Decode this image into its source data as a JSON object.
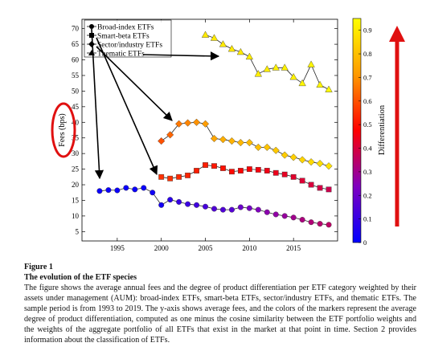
{
  "chart_data": {
    "type": "line",
    "ylabel": "Fees (bps)",
    "xlim": [
      1991,
      2020
    ],
    "ylim": [
      2,
      73
    ],
    "x_ticks": [
      "1995",
      "2000",
      "2005",
      "2010",
      "2015"
    ],
    "y_ticks": [
      "5",
      "10",
      "15",
      "20",
      "25",
      "30",
      "35",
      "40",
      "45",
      "50",
      "55",
      "60",
      "65",
      "70"
    ],
    "legend_position": "top-left",
    "colorbar": {
      "label": "Differentiation",
      "range": [
        0,
        0.95
      ],
      "ticks": [
        "0",
        "0.1",
        "0.2",
        "0.3",
        "0.4",
        "0.5",
        "0.6",
        "0.7",
        "0.8",
        "0.9"
      ]
    },
    "series": [
      {
        "name": "Broad-index ETFs",
        "marker": "circle",
        "points": [
          {
            "x": 1993,
            "y": 18.0,
            "d": 0.02
          },
          {
            "x": 1994,
            "y": 18.3,
            "d": 0.02
          },
          {
            "x": 1995,
            "y": 18.2,
            "d": 0.02
          },
          {
            "x": 1996,
            "y": 19.0,
            "d": 0.02
          },
          {
            "x": 1997,
            "y": 18.5,
            "d": 0.02
          },
          {
            "x": 1998,
            "y": 19.0,
            "d": 0.02
          },
          {
            "x": 1999,
            "y": 17.5,
            "d": 0.03
          },
          {
            "x": 2000,
            "y": 13.5,
            "d": 0.04
          },
          {
            "x": 2001,
            "y": 15.2,
            "d": 0.08
          },
          {
            "x": 2002,
            "y": 14.5,
            "d": 0.1
          },
          {
            "x": 2003,
            "y": 13.8,
            "d": 0.11
          },
          {
            "x": 2004,
            "y": 13.5,
            "d": 0.12
          },
          {
            "x": 2005,
            "y": 13.0,
            "d": 0.13
          },
          {
            "x": 2006,
            "y": 12.3,
            "d": 0.15
          },
          {
            "x": 2007,
            "y": 12.0,
            "d": 0.15
          },
          {
            "x": 2008,
            "y": 12.0,
            "d": 0.16
          },
          {
            "x": 2009,
            "y": 12.8,
            "d": 0.2
          },
          {
            "x": 2010,
            "y": 12.5,
            "d": 0.22
          },
          {
            "x": 2011,
            "y": 12.0,
            "d": 0.24
          },
          {
            "x": 2012,
            "y": 11.2,
            "d": 0.26
          },
          {
            "x": 2013,
            "y": 10.5,
            "d": 0.27
          },
          {
            "x": 2014,
            "y": 10.0,
            "d": 0.28
          },
          {
            "x": 2015,
            "y": 9.5,
            "d": 0.3
          },
          {
            "x": 2016,
            "y": 8.8,
            "d": 0.32
          },
          {
            "x": 2017,
            "y": 8.0,
            "d": 0.33
          },
          {
            "x": 2018,
            "y": 7.5,
            "d": 0.34
          },
          {
            "x": 2019,
            "y": 7.2,
            "d": 0.35
          }
        ]
      },
      {
        "name": "Smart-beta ETFs",
        "marker": "square",
        "points": [
          {
            "x": 2000,
            "y": 22.5,
            "d": 0.55
          },
          {
            "x": 2001,
            "y": 22.0,
            "d": 0.55
          },
          {
            "x": 2002,
            "y": 22.5,
            "d": 0.54
          },
          {
            "x": 2003,
            "y": 23.0,
            "d": 0.53
          },
          {
            "x": 2004,
            "y": 24.5,
            "d": 0.52
          },
          {
            "x": 2005,
            "y": 26.3,
            "d": 0.52
          },
          {
            "x": 2006,
            "y": 26.0,
            "d": 0.51
          },
          {
            "x": 2007,
            "y": 25.3,
            "d": 0.5
          },
          {
            "x": 2008,
            "y": 24.2,
            "d": 0.49
          },
          {
            "x": 2009,
            "y": 24.5,
            "d": 0.48
          },
          {
            "x": 2010,
            "y": 25.0,
            "d": 0.47
          },
          {
            "x": 2011,
            "y": 24.8,
            "d": 0.46
          },
          {
            "x": 2012,
            "y": 24.5,
            "d": 0.45
          },
          {
            "x": 2013,
            "y": 23.8,
            "d": 0.44
          },
          {
            "x": 2014,
            "y": 23.3,
            "d": 0.43
          },
          {
            "x": 2015,
            "y": 22.5,
            "d": 0.42
          },
          {
            "x": 2016,
            "y": 21.3,
            "d": 0.41
          },
          {
            "x": 2017,
            "y": 20.0,
            "d": 0.4
          },
          {
            "x": 2018,
            "y": 19.0,
            "d": 0.39
          },
          {
            "x": 2019,
            "y": 18.5,
            "d": 0.38
          }
        ]
      },
      {
        "name": "Sector/industry ETFs",
        "marker": "diamond",
        "points": [
          {
            "x": 2000,
            "y": 34.0,
            "d": 0.6
          },
          {
            "x": 2001,
            "y": 36.0,
            "d": 0.63
          },
          {
            "x": 2002,
            "y": 39.5,
            "d": 0.66
          },
          {
            "x": 2003,
            "y": 39.8,
            "d": 0.68
          },
          {
            "x": 2004,
            "y": 40.0,
            "d": 0.7
          },
          {
            "x": 2005,
            "y": 39.5,
            "d": 0.72
          },
          {
            "x": 2006,
            "y": 34.8,
            "d": 0.74
          },
          {
            "x": 2007,
            "y": 34.5,
            "d": 0.76
          },
          {
            "x": 2008,
            "y": 34.0,
            "d": 0.77
          },
          {
            "x": 2009,
            "y": 33.5,
            "d": 0.78
          },
          {
            "x": 2010,
            "y": 33.5,
            "d": 0.79
          },
          {
            "x": 2011,
            "y": 32.0,
            "d": 0.8
          },
          {
            "x": 2012,
            "y": 32.0,
            "d": 0.81
          },
          {
            "x": 2013,
            "y": 31.0,
            "d": 0.82
          },
          {
            "x": 2014,
            "y": 29.5,
            "d": 0.83
          },
          {
            "x": 2015,
            "y": 28.8,
            "d": 0.84
          },
          {
            "x": 2016,
            "y": 28.0,
            "d": 0.85
          },
          {
            "x": 2017,
            "y": 27.3,
            "d": 0.86
          },
          {
            "x": 2018,
            "y": 26.8,
            "d": 0.87
          },
          {
            "x": 2019,
            "y": 26.0,
            "d": 0.88
          }
        ]
      },
      {
        "name": "Thematic ETFs",
        "marker": "triangle",
        "points": [
          {
            "x": 2005,
            "y": 68.0,
            "d": 0.9
          },
          {
            "x": 2006,
            "y": 67.0,
            "d": 0.9
          },
          {
            "x": 2007,
            "y": 65.0,
            "d": 0.9
          },
          {
            "x": 2008,
            "y": 63.5,
            "d": 0.9
          },
          {
            "x": 2009,
            "y": 62.5,
            "d": 0.9
          },
          {
            "x": 2010,
            "y": 61.0,
            "d": 0.91
          },
          {
            "x": 2011,
            "y": 55.5,
            "d": 0.91
          },
          {
            "x": 2012,
            "y": 57.0,
            "d": 0.91
          },
          {
            "x": 2013,
            "y": 57.5,
            "d": 0.92
          },
          {
            "x": 2014,
            "y": 57.5,
            "d": 0.92
          },
          {
            "x": 2015,
            "y": 54.5,
            "d": 0.92
          },
          {
            "x": 2016,
            "y": 52.5,
            "d": 0.93
          },
          {
            "x": 2017,
            "y": 58.5,
            "d": 0.93
          },
          {
            "x": 2018,
            "y": 52.0,
            "d": 0.93
          },
          {
            "x": 2019,
            "y": 50.5,
            "d": 0.94
          }
        ]
      }
    ]
  },
  "caption": {
    "label": "Figure 1",
    "title": "The evolution of the ETF species",
    "text": "The figure shows the average annual fees and the degree of product differentiation per ETF category weighted by their assets under management (AUM): broad-index ETFs, smart-beta ETFs, sector/industry ETFs, and thematic ETFs. The sample period is from 1993 to 2019. The y-axis shows average fees, and the colors of the markers represent the average degree of product differentiation, computed as one minus the cosine similarity between the ETF portfolio weights and the weights of the aggregate portfolio of all ETFs that exist in the market at that point in time. Section 2 provides information about the classification of ETFs."
  },
  "colors": {
    "annotation_red": "#e01010",
    "arrow_black": "#000000",
    "colormap": [
      "#0000ff",
      "#7f00ff",
      "#ff0000",
      "#ffa000",
      "#ffff00"
    ]
  }
}
